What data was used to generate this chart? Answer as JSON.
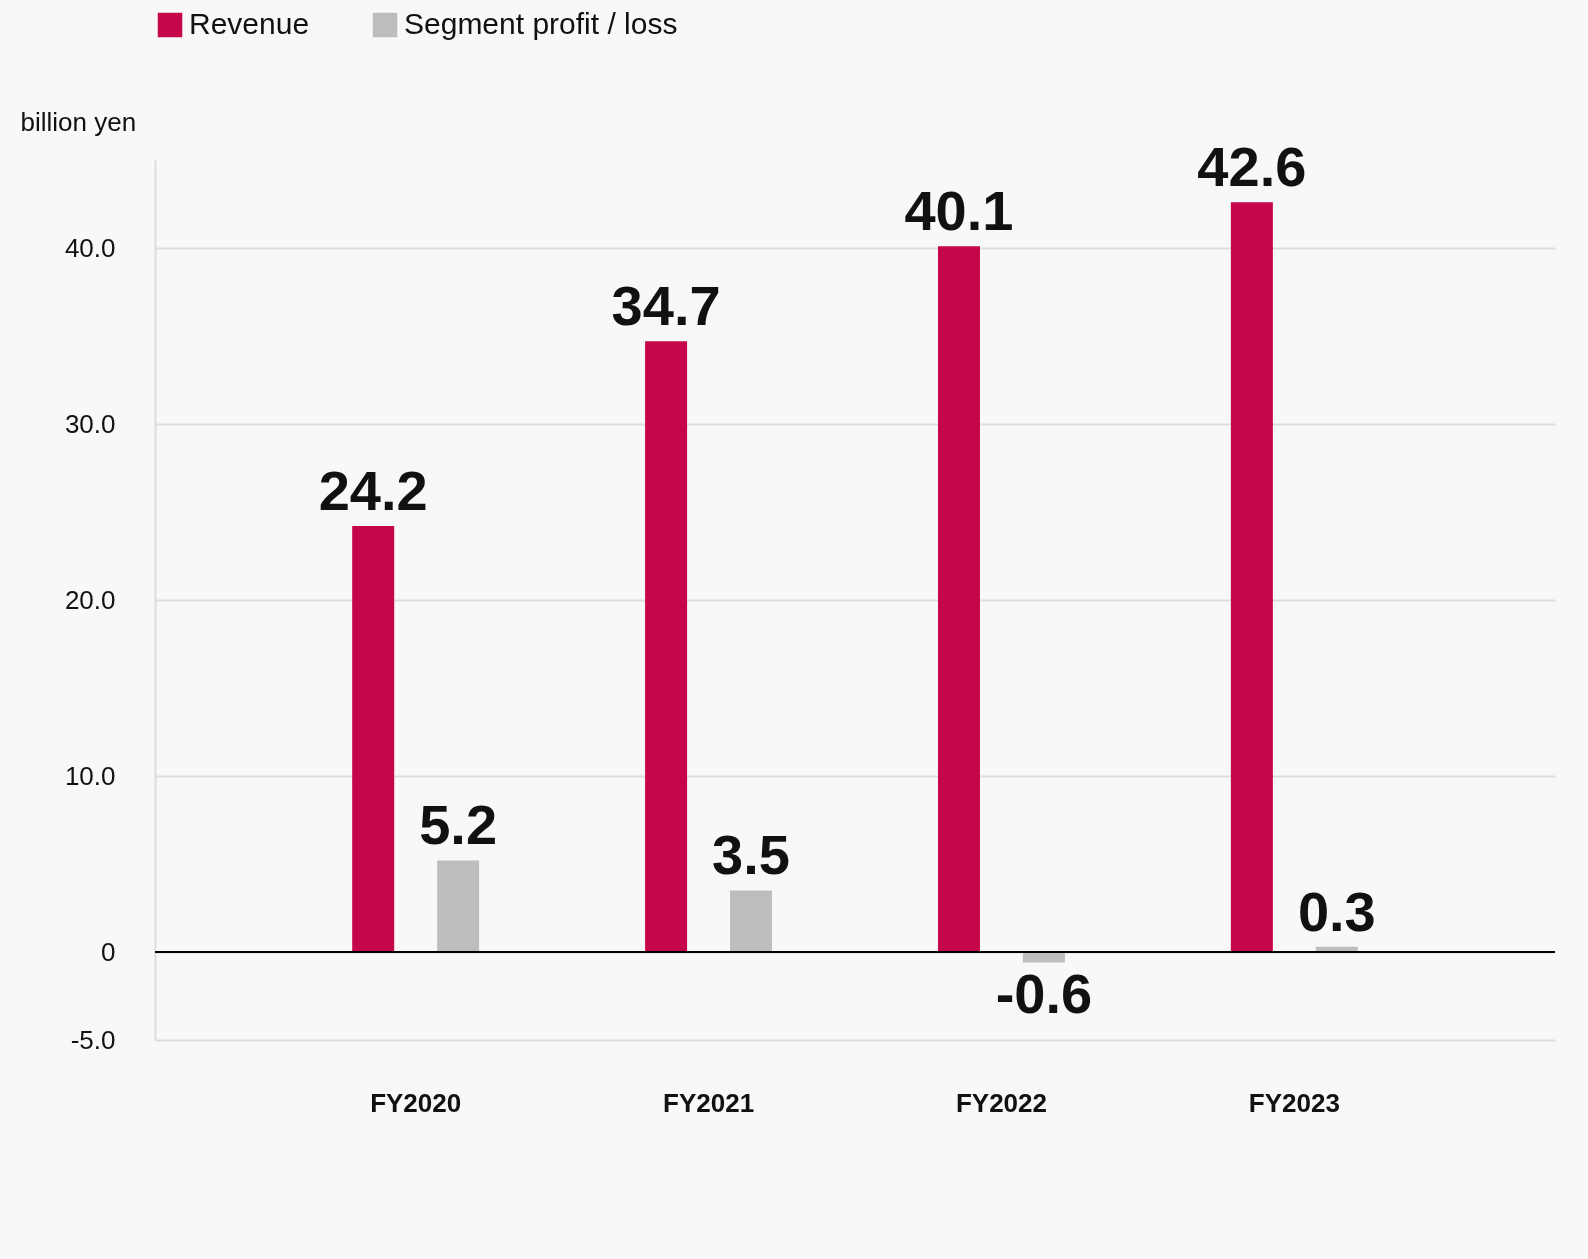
{
  "chart_data": {
    "type": "bar",
    "ylabel": "billion yen",
    "categories": [
      "FY2020",
      "FY2021",
      "FY2022",
      "FY2023"
    ],
    "series": [
      {
        "name": "Revenue",
        "color": "#c5064a",
        "values": [
          24.2,
          34.7,
          40.1,
          42.6
        ]
      },
      {
        "name": "Segment profit / loss",
        "color": "#bdbdbd",
        "values": [
          5.2,
          3.5,
          -0.6,
          0.3
        ]
      }
    ],
    "ylim": [
      -5,
      45
    ],
    "yticks": [
      {
        "value": -5,
        "label": "-5.0"
      },
      0,
      {
        "value": 10,
        "label": "10.0"
      },
      {
        "value": 20,
        "label": "20.0"
      },
      {
        "value": 30,
        "label": "30.0"
      },
      {
        "value": 40,
        "label": "40.0"
      }
    ],
    "grid": "y",
    "legend": "top left",
    "data_labels": true
  }
}
